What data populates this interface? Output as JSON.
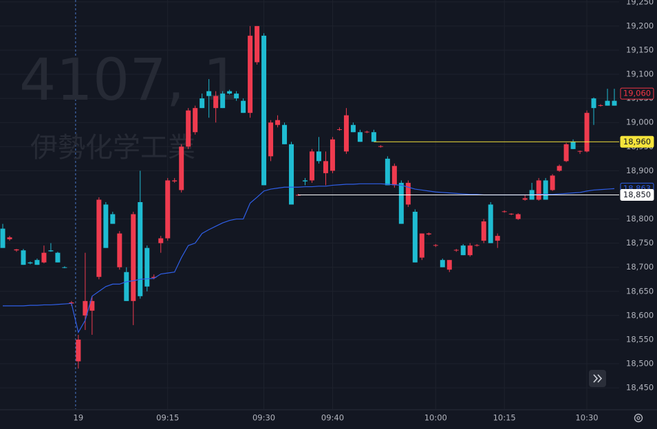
{
  "chart_data": {
    "type": "candlestick",
    "watermark": {
      "symbol": "4107, 1",
      "name": "伊勢化学工業"
    },
    "up_color": "#ef3b4f",
    "down_color": "#1fbcd2",
    "ylim": [
      18406,
      19254
    ],
    "yticks": [
      {
        "value": 18450,
        "label": "18,450"
      },
      {
        "value": 18500,
        "label": "18,500"
      },
      {
        "value": 18550,
        "label": "18,550"
      },
      {
        "value": 18600,
        "label": "18,600"
      },
      {
        "value": 18650,
        "label": "18,650"
      },
      {
        "value": 18700,
        "label": "18,700"
      },
      {
        "value": 18750,
        "label": "18,750"
      },
      {
        "value": 18800,
        "label": "18,800"
      },
      {
        "value": 18850,
        "label": "18,850"
      },
      {
        "value": 18900,
        "label": "18,900"
      },
      {
        "value": 18950,
        "label": "18,950"
      },
      {
        "value": 19000,
        "label": "19,000"
      },
      {
        "value": 19050,
        "label": "19,050"
      },
      {
        "value": 19100,
        "label": "19,100"
      },
      {
        "value": 19150,
        "label": "19,150"
      },
      {
        "value": 19200,
        "label": "19,200"
      },
      {
        "value": 19250,
        "label": "19,250"
      }
    ],
    "xticks": [
      {
        "value": 11,
        "label": "19"
      },
      {
        "value": 24,
        "label": "09:15"
      },
      {
        "value": 38,
        "label": "09:30"
      },
      {
        "value": 48,
        "label": "09:40"
      },
      {
        "value": 63,
        "label": "10:00"
      },
      {
        "value": 73,
        "label": "10:15"
      },
      {
        "value": 85,
        "label": "10:30"
      }
    ],
    "grid": true,
    "open": [
      18780,
      18758,
      18735,
      18735,
      18710,
      18715,
      18710,
      18735,
      18730,
      18700,
      18625,
      18505,
      18600,
      18610,
      18680,
      18830,
      18810,
      18700,
      18690,
      18630,
      18835,
      18740,
      18678,
      18750,
      18760,
      18878,
      18860,
      18950,
      18980,
      19050,
      19065,
      19030,
      19060,
      19065,
      19060,
      19045,
      19020,
      19125,
      19180,
      18930,
      18995,
      18995,
      18955,
      18850,
      18880,
      18880,
      18940,
      18895,
      18900,
      18985,
      18940,
      18995,
      18980,
      18980,
      18980,
      18950,
      18925,
      18870,
      18875,
      18830,
      18815,
      18720,
      18768,
      18745,
      18715,
      18695,
      18735,
      18745,
      18725,
      18745,
      18755,
      18830,
      18755,
      18815,
      18810,
      18800,
      18840,
      18860,
      18840,
      18880,
      18860,
      18900,
      18920,
      18960,
      18940,
      18940,
      19050,
      19035,
      19045,
      19045
    ],
    "high": [
      18790,
      18765,
      18738,
      18738,
      18712,
      18718,
      18745,
      18750,
      18732,
      18702,
      18630,
      18560,
      18730,
      18640,
      18845,
      18835,
      18815,
      18775,
      18700,
      18815,
      18900,
      18745,
      18685,
      18765,
      18885,
      18885,
      18955,
      19030,
      19035,
      19060,
      19090,
      19065,
      19065,
      19068,
      19065,
      19050,
      19200,
      19200,
      19185,
      19005,
      19015,
      19000,
      18960,
      18852,
      18885,
      18945,
      18970,
      18940,
      18970,
      18990,
      19030,
      19000,
      18985,
      18983,
      18985,
      18953,
      18930,
      18915,
      18880,
      18880,
      18820,
      18770,
      18772,
      18748,
      18718,
      18715,
      18738,
      18748,
      18750,
      18748,
      18800,
      18835,
      18770,
      18818,
      18812,
      18812,
      18850,
      18875,
      18885,
      18885,
      18893,
      18913,
      18958,
      18965,
      18942,
      19025,
      19052,
      19038,
      19070,
      19070
    ],
    "low": [
      18740,
      18755,
      18732,
      18705,
      18706,
      18705,
      18708,
      18732,
      18710,
      18698,
      18620,
      18490,
      18570,
      18560,
      18675,
      18740,
      18790,
      18695,
      18630,
      18580,
      18635,
      18650,
      18675,
      18730,
      18755,
      18875,
      18855,
      18945,
      18975,
      19030,
      19010,
      19000,
      19030,
      19058,
      19045,
      19020,
      19010,
      19120,
      18870,
      18920,
      18990,
      18955,
      18830,
      18848,
      18870,
      18875,
      18915,
      18870,
      18895,
      18983,
      18935,
      18980,
      18960,
      18978,
      18960,
      18948,
      18870,
      18865,
      18790,
      18825,
      18710,
      18715,
      18766,
      18742,
      18700,
      18690,
      18732,
      18725,
      18722,
      18743,
      18750,
      18750,
      18740,
      18813,
      18808,
      18798,
      18838,
      18840,
      18838,
      18840,
      18858,
      18898,
      18918,
      18945,
      18935,
      18938,
      18995,
      19033,
      19035,
      19035
    ],
    "close": [
      18740,
      18762,
      18737,
      18705,
      18708,
      18705,
      18730,
      18733,
      18710,
      18699,
      18627,
      18550,
      18630,
      18630,
      18840,
      18740,
      18790,
      18770,
      18630,
      18810,
      18640,
      18660,
      18680,
      18760,
      18880,
      18880,
      18950,
      19025,
      19030,
      19030,
      19055,
      19055,
      19030,
      19060,
      19050,
      19020,
      19180,
      19200,
      18870,
      19000,
      19005,
      18955,
      18830,
      18850,
      18878,
      18940,
      18920,
      18920,
      18965,
      18986,
      19015,
      18980,
      18960,
      18981,
      18960,
      18951,
      18870,
      18910,
      18790,
      18875,
      18710,
      18770,
      18770,
      18746,
      18700,
      18715,
      18736,
      18725,
      18745,
      18746,
      18795,
      18750,
      18765,
      18816,
      18811,
      18810,
      18843,
      18840,
      18880,
      18840,
      18890,
      18910,
      18955,
      18945,
      18941,
      19020,
      19030,
      19036,
      19035,
      19035
    ],
    "vwap": {
      "color": "#2f5fe8",
      "values": [
        18620,
        18620,
        18620,
        18620,
        18621,
        18621,
        18622,
        18622,
        18623,
        18624,
        18625,
        18565,
        18590,
        18640,
        18650,
        18660,
        18665,
        18665,
        18670,
        18672,
        18675,
        18676,
        18677,
        18686,
        18688,
        18690,
        18720,
        18745,
        18750,
        18770,
        18778,
        18785,
        18792,
        18797,
        18800,
        18800,
        18833,
        18845,
        18858,
        18862,
        18864,
        18866,
        18866,
        18866,
        18867,
        18867,
        18868,
        18868,
        18870,
        18871,
        18872,
        18872,
        18873,
        18873,
        18873,
        18873,
        18872,
        18871,
        18870,
        18866,
        18862,
        18860,
        18858,
        18856,
        18855,
        18854,
        18853,
        18852,
        18851,
        18851,
        18850,
        18850,
        18850,
        18850,
        18850,
        18850,
        18850,
        18850,
        18851,
        18851,
        18851,
        18852,
        18853,
        18854,
        18855,
        18858,
        18860,
        18861,
        18862,
        18863
      ]
    },
    "price_lines": [
      {
        "value": 19060,
        "label": "19,060",
        "color": "#f23645",
        "box": "outline"
      },
      {
        "value": 18960,
        "label": "18,960",
        "color": "#f5e33b",
        "box": "fill",
        "from": 54
      },
      {
        "value": 18863,
        "label": "18,863",
        "color": "#2f5fe8",
        "box": "outline"
      },
      {
        "value": 18850,
        "label": "18,850",
        "color": "#ffffff",
        "box": "fill",
        "from": 43
      }
    ]
  }
}
